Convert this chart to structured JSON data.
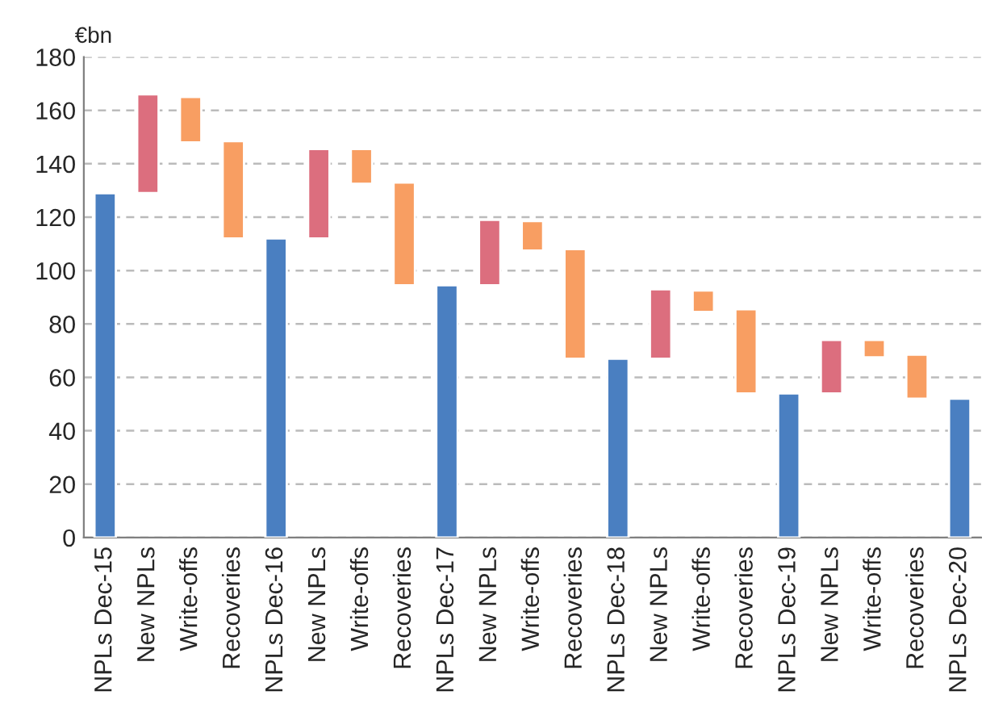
{
  "chart_data": {
    "type": "bar",
    "ylabel": "€bn",
    "categories": [
      "NPLs Dec-15",
      "New NPLs",
      "Write-offs",
      "Recoveries",
      "NPLs Dec-16",
      "New NPLs",
      "Write-offs",
      "Recoveries",
      "NPLs Dec-17",
      "New NPLs",
      "Write-offs",
      "Recoveries",
      "NPLs Dec-18",
      "New NPLs",
      "Write-offs",
      "Recoveries",
      "NPLs Dec-19",
      "New NPLs",
      "Write-offs",
      "Recoveries",
      "NPLs Dec-20"
    ],
    "values": [
      129,
      37,
      -17,
      -36.5,
      112,
      33.5,
      -13,
      -38.5,
      94.5,
      24.5,
      -11,
      -41,
      67,
      26,
      -8,
      -31.5,
      54,
      20,
      -6.5,
      -16.5,
      52
    ],
    "base": [
      0,
      129,
      165,
      148.5,
      0,
      112,
      145.5,
      133,
      0,
      94.5,
      118.5,
      108,
      0,
      67,
      92.5,
      85.5,
      0,
      54,
      74,
      68.5,
      0
    ],
    "colors": [
      "#4a7fc1",
      "#dc6e7e",
      "#f89e62",
      "#f89e62",
      "#4a7fc1",
      "#dc6e7e",
      "#f89e62",
      "#f89e62",
      "#4a7fc1",
      "#dc6e7e",
      "#f89e62",
      "#f89e62",
      "#4a7fc1",
      "#dc6e7e",
      "#f89e62",
      "#f89e62",
      "#4a7fc1",
      "#dc6e7e",
      "#f89e62",
      "#f89e62",
      "#4a7fc1"
    ],
    "ylim": [
      0,
      180
    ],
    "yticks": [
      0,
      20,
      40,
      60,
      80,
      100,
      120,
      140,
      160,
      180
    ],
    "grid": "y",
    "legend": false
  }
}
